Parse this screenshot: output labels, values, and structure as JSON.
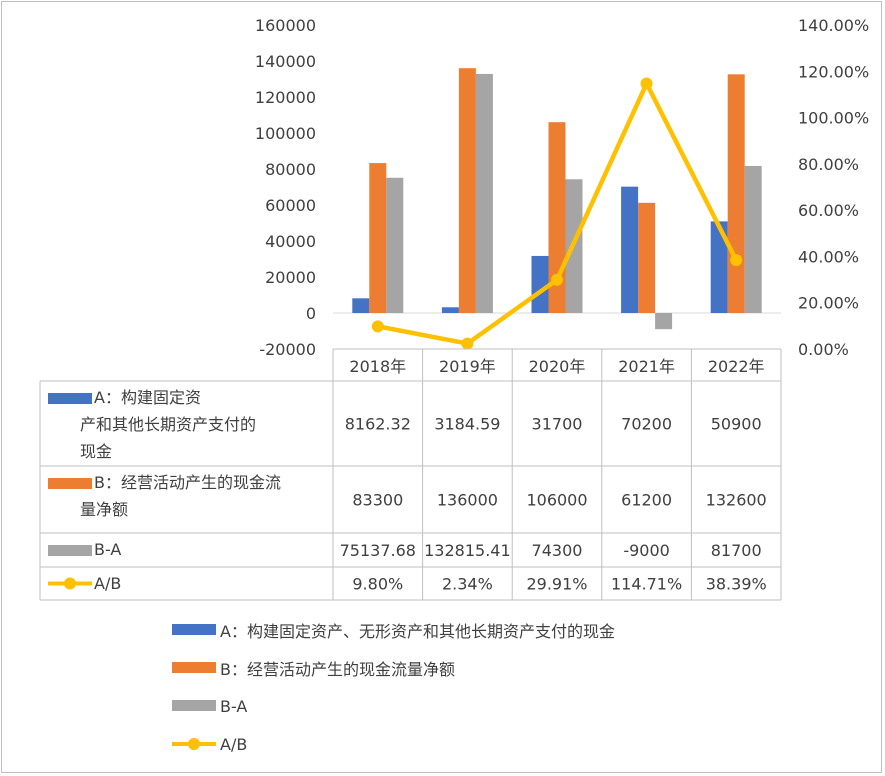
{
  "chart_data": {
    "type": "bar",
    "categories": [
      "2018年",
      "2019年",
      "2020年",
      "2021年",
      "2022年"
    ],
    "series": [
      {
        "name": "A：构建固定资产、无形资产和其他长期资产支付的现金",
        "kind": "bar",
        "axis": "left",
        "color": "#4472c4",
        "values": [
          8162.32,
          3184.59,
          31700,
          70200,
          50900
        ]
      },
      {
        "name": "B：经营活动产生的现金流量净额",
        "kind": "bar",
        "axis": "left",
        "color": "#ed7d31",
        "values": [
          83300,
          136000,
          106000,
          61200,
          132600
        ]
      },
      {
        "name": "B-A",
        "kind": "bar",
        "axis": "left",
        "color": "#a5a5a5",
        "values": [
          75137.68,
          132815.41,
          74300,
          -9000,
          81700
        ]
      },
      {
        "name": "A/B",
        "kind": "line",
        "axis": "right",
        "color": "#ffc000",
        "values": [
          0.098,
          0.0234,
          0.2991,
          1.1471,
          0.3839
        ]
      }
    ],
    "y_left": {
      "min": -20000,
      "max": 160000,
      "step": 20000,
      "ticks": [
        "-20000",
        "0",
        "20000",
        "40000",
        "60000",
        "80000",
        "100000",
        "120000",
        "140000",
        "160000"
      ]
    },
    "y_right": {
      "min": 0,
      "max": 1.4,
      "step": 0.2,
      "ticks": [
        "0.00%",
        "20.00%",
        "40.00%",
        "60.00%",
        "80.00%",
        "100.00%",
        "120.00%",
        "140.00%"
      ]
    },
    "table": {
      "row_labels": [
        "A：构建固定资产、无形资产和其他长期资产支付的现金",
        "B：经营活动产生的现金流量净额",
        "B-A",
        "A/B"
      ],
      "row_label_lines": [
        [
          "A：构建固定资",
          "产和其他长期资产支付的",
          "现金"
        ],
        [
          "B：经营活动产生的现金流",
          "量净额"
        ],
        [
          "B-A"
        ],
        [
          "A/B"
        ]
      ],
      "rows": [
        [
          "8162.32",
          "3184.59",
          "31700",
          "70200",
          "50900"
        ],
        [
          "83300",
          "136000",
          "106000",
          "61200",
          "132600"
        ],
        [
          "75137.68",
          "132815.41",
          "74300",
          "-9000",
          "81700"
        ],
        [
          "9.80%",
          "2.34%",
          "29.91%",
          "114.71%",
          "38.39%"
        ]
      ]
    },
    "legend_position": "bottom",
    "grid": false
  }
}
